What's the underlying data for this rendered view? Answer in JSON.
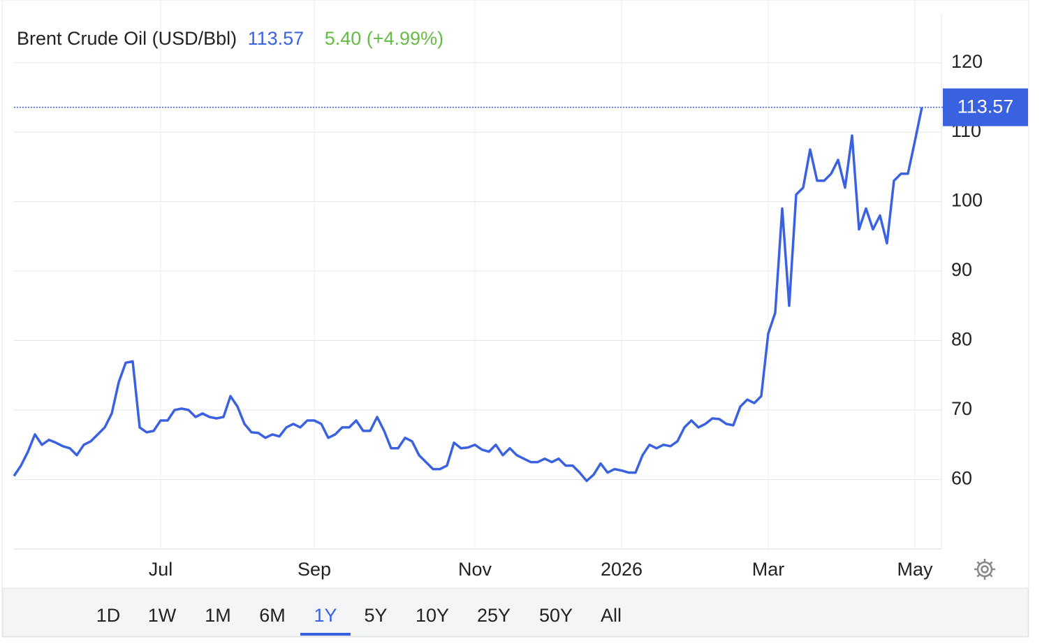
{
  "chart_data": {
    "type": "line",
    "title": "Brent Crude Oil (USD/Bbl)",
    "change": "5.40 (+4.99%)",
    "color": "#3a62e0",
    "change_color": "#66bb44",
    "grid": true,
    "ylim": [
      50,
      127
    ],
    "yticks": [
      60,
      70,
      80,
      90,
      100,
      110,
      120
    ],
    "categories": [
      null,
      null,
      null,
      null,
      null,
      null,
      null,
      null,
      null,
      null,
      null,
      null,
      null,
      null,
      null,
      null,
      null,
      null,
      null,
      null,
      null,
      "Jul",
      null,
      null,
      null,
      null,
      null,
      null,
      null,
      null,
      null,
      null,
      null,
      null,
      null,
      null,
      null,
      null,
      null,
      null,
      null,
      null,
      null,
      "Sep",
      null,
      null,
      null,
      null,
      null,
      null,
      null,
      null,
      null,
      null,
      null,
      null,
      null,
      null,
      null,
      null,
      null,
      null,
      null,
      null,
      null,
      null,
      "Nov",
      null,
      null,
      null,
      null,
      null,
      null,
      null,
      null,
      null,
      null,
      null,
      null,
      null,
      null,
      null,
      null,
      null,
      null,
      null,
      null,
      "2026",
      null,
      null,
      null,
      null,
      null,
      null,
      null,
      null,
      null,
      null,
      null,
      null,
      null,
      null,
      null,
      null,
      null,
      null,
      null,
      null,
      "Mar",
      null,
      null,
      null,
      null,
      null,
      null,
      null,
      null,
      null,
      null,
      null,
      null,
      null,
      null,
      null,
      null,
      null,
      null,
      null,
      null,
      "May",
      null
    ],
    "values": [
      60.5,
      62,
      64,
      66.5,
      65,
      65.7,
      65.3,
      64.8,
      64.5,
      63.5,
      65,
      65.5,
      66.5,
      67.5,
      69.5,
      74,
      76.8,
      77,
      67.5,
      66.8,
      67,
      68.5,
      68.5,
      70,
      70.2,
      70,
      69,
      69.5,
      69,
      68.8,
      69,
      72,
      70.5,
      68,
      66.8,
      66.7,
      66,
      66.5,
      66.2,
      67.5,
      68,
      67.5,
      68.5,
      68.5,
      68,
      66,
      66.5,
      67.5,
      67.5,
      68.5,
      67,
      67,
      69,
      67,
      64.5,
      64.5,
      66,
      65.5,
      63.5,
      62.5,
      61.5,
      61.5,
      62,
      65.3,
      64.5,
      64.6,
      65,
      64.3,
      64,
      65,
      63.5,
      64.5,
      63.5,
      63,
      62.5,
      62.5,
      63,
      62.5,
      63,
      62,
      62,
      61,
      59.8,
      60.7,
      62.3,
      61,
      61.5,
      61.3,
      61,
      61,
      63.5,
      65,
      64.5,
      65,
      64.8,
      65.5,
      67.5,
      68.5,
      67.5,
      68,
      68.8,
      68.7,
      68,
      67.8,
      70.5,
      71.5,
      71,
      72,
      81,
      84,
      99,
      85,
      101,
      102,
      107.5,
      103,
      103,
      104,
      106,
      102,
      109.5,
      96,
      99,
      96,
      98,
      94,
      103,
      104,
      104,
      108.7,
      113.57
    ],
    "range_buttons": [
      "1D",
      "1W",
      "1M",
      "6M",
      "1Y",
      "5Y",
      "10Y",
      "25Y",
      "50Y",
      "All"
    ],
    "selected_range": "1Y"
  }
}
